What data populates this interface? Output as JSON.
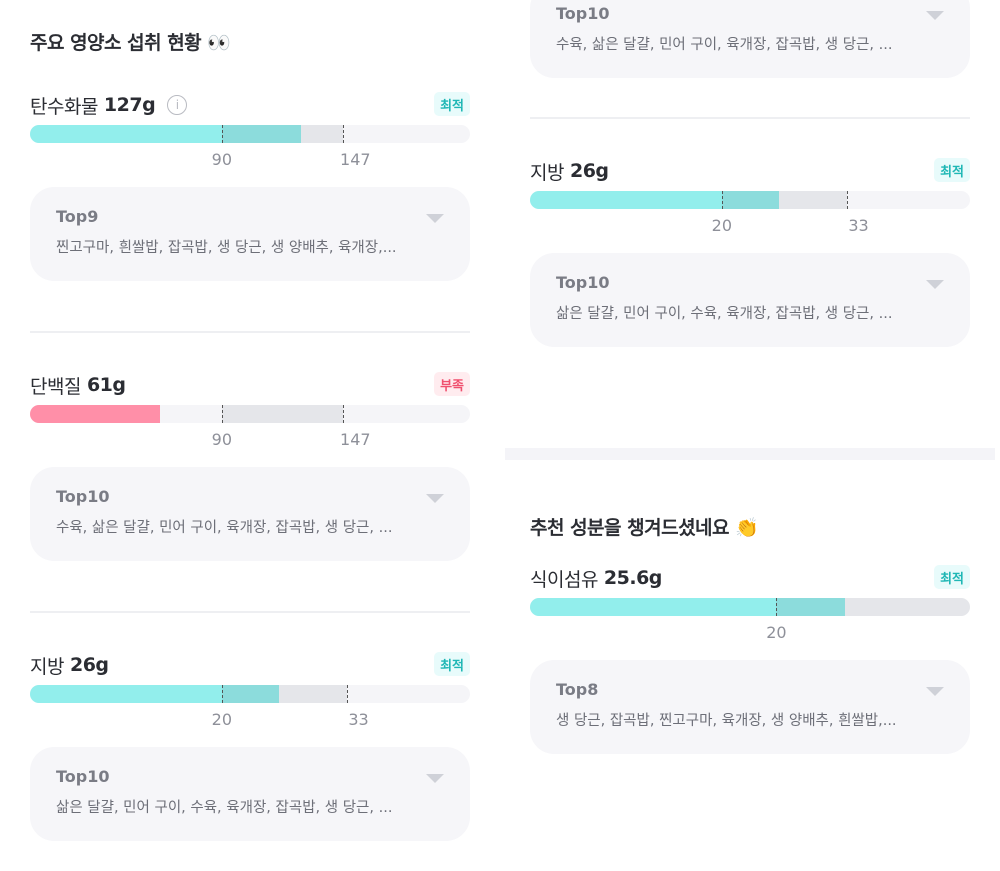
{
  "colors": {
    "fill_ok": "#92eeec",
    "fill_ok_over": "#8cdcdc",
    "fill_low": "#ff8fa8",
    "range": "#e5e6ea",
    "track": "#f5f5f8"
  },
  "left": {
    "title": "주요 영양소 섭취 현황 👀",
    "carbs": {
      "name": "탄수화물",
      "amount": "127g",
      "value": 127,
      "min": 90,
      "max": 147,
      "min_label": "90",
      "max_label": "147",
      "badge": "최적",
      "status": "ok",
      "info_icon": "info-icon",
      "top": "Top9",
      "foods": "찐고구마, 흰쌀밥, 잡곡밥, 생 당근, 생 양배추, 육개장,..."
    },
    "protein": {
      "name": "단백질",
      "amount": "61g",
      "value": 61,
      "min": 90,
      "max": 147,
      "min_label": "90",
      "max_label": "147",
      "badge": "부족",
      "status": "low",
      "top": "Top10",
      "foods": "수육, 삶은 달걀, 민어 구이, 육개장, 잡곡밥, 생 당근, ..."
    },
    "fat": {
      "name": "지방",
      "amount": "26g",
      "value": 26,
      "min": 20,
      "max": 33,
      "min_label": "20",
      "max_label": "33",
      "badge": "최적",
      "status": "ok",
      "top": "Top10",
      "foods": "삶은 달걀, 민어 구이, 수육, 육개장, 잡곡밥, 생 당근, ..."
    }
  },
  "right": {
    "prev": {
      "top": "Top10",
      "foods": "수육, 삶은 달걀, 민어 구이, 육개장, 잡곡밥, 생 당근, ..."
    },
    "fat": {
      "name": "지방",
      "amount": "26g",
      "value": 26,
      "min": 20,
      "max": 33,
      "min_label": "20",
      "max_label": "33",
      "badge": "최적",
      "status": "ok",
      "top": "Top10",
      "foods": "삶은 달걀, 민어 구이, 수육, 육개장, 잡곡밥, 생 당근, ..."
    },
    "title": "추천 성분을 챙겨드셨네요 👏",
    "fiber": {
      "name": "식이섬유",
      "amount": "25.6g",
      "value": 25.6,
      "min": 20,
      "max": null,
      "min_label": "20",
      "badge": "최적",
      "status": "ok",
      "top": "Top8",
      "foods": "생 당근, 잡곡밥, 찐고구마, 육개장, 생 양배추, 흰쌀밥,..."
    }
  }
}
